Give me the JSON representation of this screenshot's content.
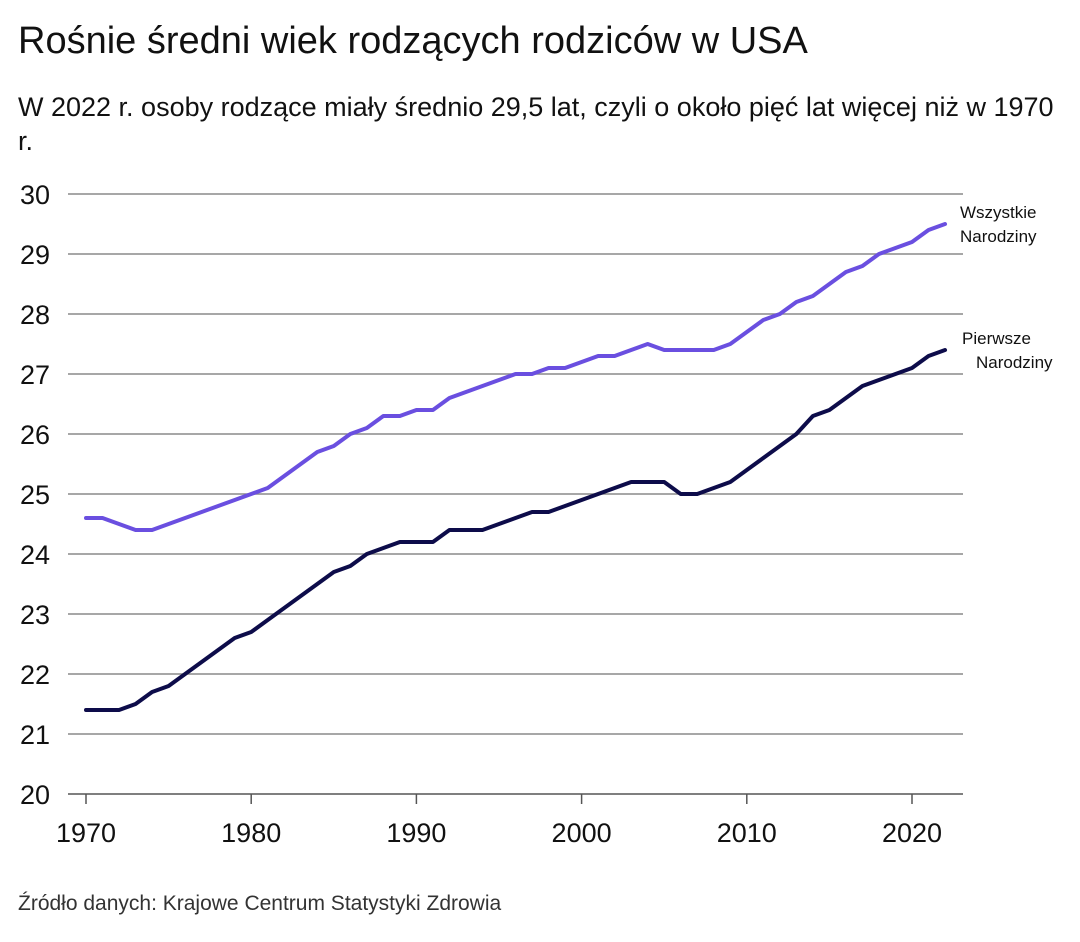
{
  "header": {
    "title": "Rośnie średni wiek rodzących rodziców w USA",
    "subtitle": "W 2022 r. osoby rodzące miały średnio 29,5 lat, czyli o około pięć lat więcej niż w 1970 r."
  },
  "footer": {
    "source": "Źródło danych: Krajowe Centrum Statystyki Zdrowia"
  },
  "chart_data": {
    "type": "line",
    "title": "Rośnie średni wiek rodzących rodziców w USA",
    "xlabel": "",
    "ylabel": "",
    "xlim": [
      1970,
      2023
    ],
    "ylim": [
      20,
      30
    ],
    "x_ticks": [
      1970,
      1980,
      1990,
      2000,
      2010,
      2020
    ],
    "y_ticks": [
      20,
      21,
      22,
      23,
      24,
      25,
      26,
      27,
      28,
      29,
      30
    ],
    "grid": true,
    "x": [
      1970,
      1971,
      1972,
      1973,
      1974,
      1975,
      1976,
      1977,
      1978,
      1979,
      1980,
      1981,
      1982,
      1983,
      1984,
      1985,
      1986,
      1987,
      1988,
      1989,
      1990,
      1991,
      1992,
      1993,
      1994,
      1995,
      1996,
      1997,
      1998,
      1999,
      2000,
      2001,
      2002,
      2003,
      2004,
      2005,
      2006,
      2007,
      2008,
      2009,
      2010,
      2011,
      2012,
      2013,
      2014,
      2015,
      2016,
      2017,
      2018,
      2019,
      2020,
      2021,
      2022
    ],
    "series": [
      {
        "name": "Wszystkie Narodziny",
        "label_lines": [
          "Wszystkie",
          "Narodziny"
        ],
        "color": "#6a4fe0",
        "values": [
          24.6,
          24.6,
          24.5,
          24.4,
          24.4,
          24.5,
          24.6,
          24.7,
          24.8,
          24.9,
          25.0,
          25.1,
          25.3,
          25.5,
          25.7,
          25.8,
          26.0,
          26.1,
          26.3,
          26.3,
          26.4,
          26.4,
          26.6,
          26.7,
          26.8,
          26.9,
          27.0,
          27.0,
          27.1,
          27.1,
          27.2,
          27.3,
          27.3,
          27.4,
          27.5,
          27.4,
          27.4,
          27.4,
          27.4,
          27.5,
          27.7,
          27.9,
          28.0,
          28.2,
          28.3,
          28.5,
          28.7,
          28.8,
          29.0,
          29.1,
          29.2,
          29.4,
          29.5
        ]
      },
      {
        "name": "Pierwsze Narodziny",
        "label_lines": [
          "Pierwsze",
          "Narodziny"
        ],
        "color": "#0d0c4a",
        "values": [
          21.4,
          21.4,
          21.4,
          21.5,
          21.7,
          21.8,
          22.0,
          22.2,
          22.4,
          22.6,
          22.7,
          22.9,
          23.1,
          23.3,
          23.5,
          23.7,
          23.8,
          24.0,
          24.1,
          24.2,
          24.2,
          24.2,
          24.4,
          24.4,
          24.4,
          24.5,
          24.6,
          24.7,
          24.7,
          24.8,
          24.9,
          25.0,
          25.1,
          25.2,
          25.2,
          25.2,
          25.0,
          25.0,
          25.1,
          25.2,
          25.4,
          25.6,
          25.8,
          26.0,
          26.3,
          26.4,
          26.6,
          26.8,
          26.9,
          27.0,
          27.1,
          27.3,
          27.4
        ]
      }
    ]
  }
}
